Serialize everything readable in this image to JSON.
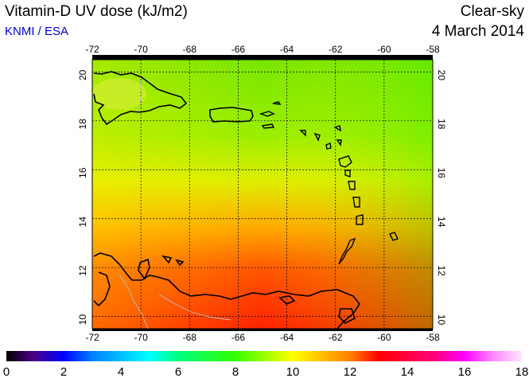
{
  "header": {
    "title": "Vitamin-D UV dose (kJ/m2)",
    "credit": "KNMI / ESA",
    "sky_condition": "Clear-sky",
    "date": "4 March 2014"
  },
  "map": {
    "projection": "lat-lon",
    "lon_range": [
      -72,
      -58
    ],
    "lat_range": [
      9.5,
      20.5
    ],
    "lon_ticks": [
      "-72",
      "-70",
      "-68",
      "-66",
      "-64",
      "-62",
      "-60",
      "-58"
    ],
    "lat_ticks": [
      "20",
      "18",
      "16",
      "14",
      "12",
      "10"
    ],
    "gridlines": "dotted",
    "field_description_colors": {
      "north": "#66ee00",
      "center": "#ccee00",
      "south": "#ff3300"
    }
  },
  "colorbar": {
    "min": 0,
    "max": 18,
    "labels": [
      "0",
      "2",
      "4",
      "6",
      "8",
      "10",
      "12",
      "14",
      "16",
      "18"
    ]
  }
}
